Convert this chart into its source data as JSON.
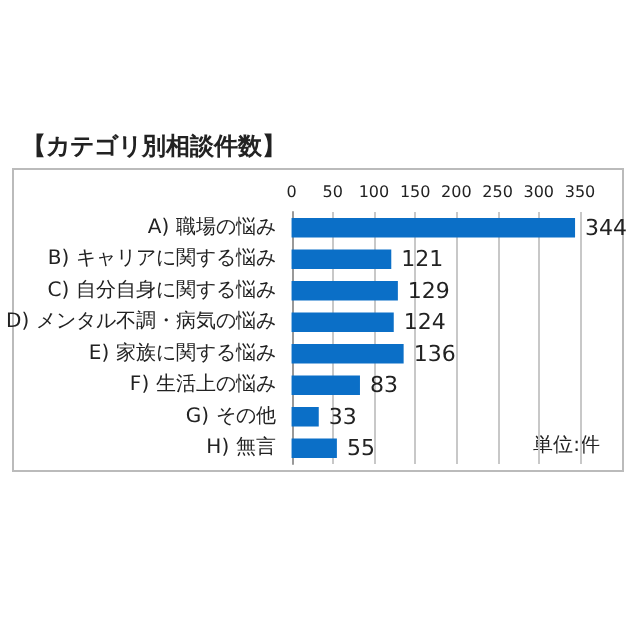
{
  "chart_data": {
    "type": "bar",
    "orientation": "horizontal",
    "title": "【カテゴリ別相談件数】",
    "categories": [
      "A) 職場の悩み",
      "B) キャリアに関する悩み",
      "C) 自分自身に関する悩み",
      "D) メンタル不調・病気の悩み",
      "E) 家族に関する悩み",
      "F) 生活上の悩み",
      "G) その他",
      "H) 無言"
    ],
    "values": [
      344,
      121,
      129,
      124,
      136,
      83,
      33,
      55
    ],
    "color": "#0b6fc7",
    "xlim": [
      0,
      350
    ],
    "xticks": [
      0,
      50,
      100,
      150,
      200,
      250,
      300,
      350
    ],
    "grid": "x",
    "data_labels": true,
    "annotations": [
      "単位:件"
    ]
  }
}
